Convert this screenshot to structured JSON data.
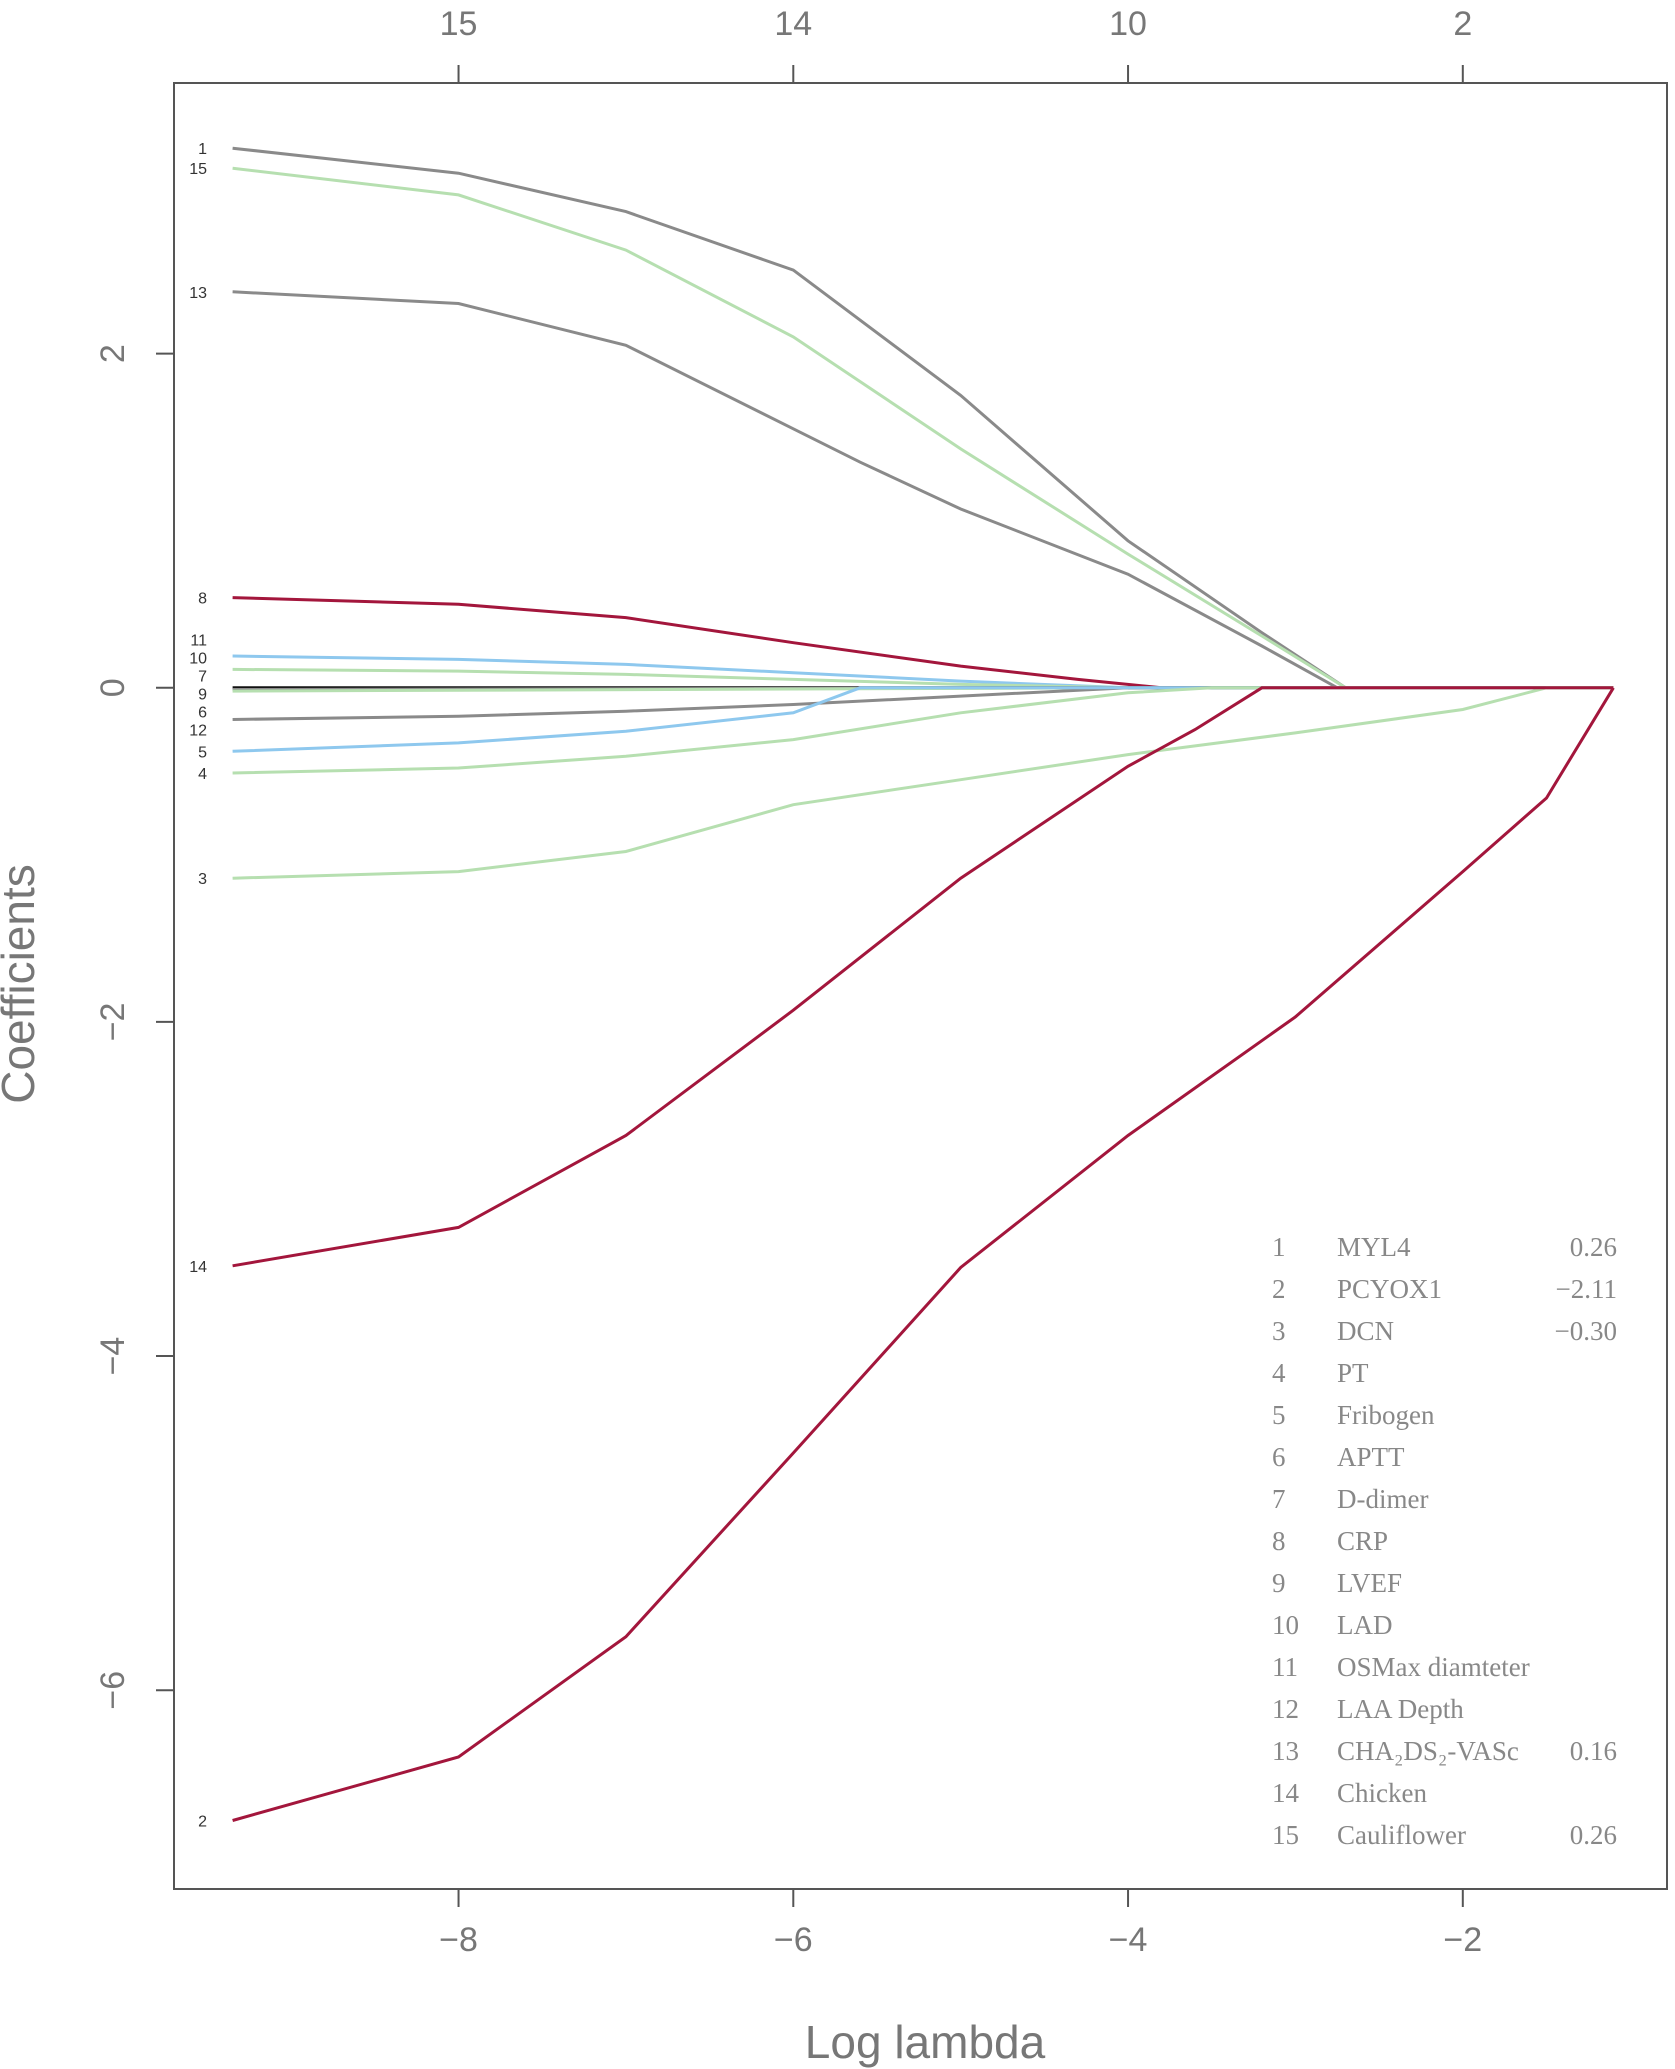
{
  "chart_data": {
    "type": "line",
    "xlabel": "Log lambda",
    "ylabel": "Coefficients",
    "xlim": [
      -9.7,
      -0.78
    ],
    "ylim": [
      -7.19,
      3.62
    ],
    "x_ticks": [
      -8,
      -6,
      -4,
      -2
    ],
    "y_ticks": [
      -6,
      -4,
      -2,
      0,
      2
    ],
    "top_axis_ticks": [
      -8,
      -6,
      -4,
      -2
    ],
    "top_axis_labels": [
      "15",
      "14",
      "10",
      "2"
    ],
    "grid": false,
    "colors": {
      "gray": "#8a8a8a",
      "green": "#b6dfb0",
      "red": "#a3163c",
      "blue": "#8ec8ee",
      "black": "#111111"
    },
    "series": [
      {
        "label": "1",
        "color": "#8a8a8a",
        "points": [
          [
            -9.35,
            3.23
          ],
          [
            -8,
            3.08
          ],
          [
            -7,
            2.85
          ],
          [
            -6,
            2.5
          ],
          [
            -5,
            1.75
          ],
          [
            -4,
            0.88
          ],
          [
            -3.2,
            0.33
          ],
          [
            -2.7,
            0
          ],
          [
            -1.1,
            0
          ]
        ]
      },
      {
        "label": "15",
        "color": "#b6dfb0",
        "points": [
          [
            -9.35,
            3.11
          ],
          [
            -8,
            2.95
          ],
          [
            -7,
            2.62
          ],
          [
            -6,
            2.1
          ],
          [
            -5,
            1.43
          ],
          [
            -4,
            0.8
          ],
          [
            -3.2,
            0.31
          ],
          [
            -2.7,
            0
          ],
          [
            -1.1,
            0
          ]
        ]
      },
      {
        "label": "13",
        "color": "#8a8a8a",
        "points": [
          [
            -9.35,
            2.37
          ],
          [
            -8,
            2.3
          ],
          [
            -7,
            2.05
          ],
          [
            -6,
            1.55
          ],
          [
            -5.6,
            1.35
          ],
          [
            -5,
            1.07
          ],
          [
            -4,
            0.68
          ],
          [
            -3.2,
            0.25
          ],
          [
            -2.75,
            0
          ],
          [
            -1.1,
            0
          ]
        ]
      },
      {
        "label": "8",
        "color": "#a3163c",
        "points": [
          [
            -9.35,
            0.54
          ],
          [
            -8,
            0.5
          ],
          [
            -7,
            0.42
          ],
          [
            -6,
            0.27
          ],
          [
            -5,
            0.13
          ],
          [
            -4.3,
            0.05
          ],
          [
            -3.8,
            0
          ],
          [
            -1.1,
            0
          ]
        ]
      },
      {
        "label": "11",
        "color": "#8ec8ee",
        "points": [
          [
            -9.35,
            0.19
          ],
          [
            -8,
            0.17
          ],
          [
            -7,
            0.14
          ],
          [
            -6,
            0.09
          ],
          [
            -5,
            0.04
          ],
          [
            -4,
            0
          ],
          [
            -1.1,
            0
          ]
        ]
      },
      {
        "label": "10",
        "color": "#b6dfb0",
        "points": [
          [
            -9.35,
            0.11
          ],
          [
            -8,
            0.1
          ],
          [
            -7,
            0.08
          ],
          [
            -6,
            0.05
          ],
          [
            -5,
            0.02
          ],
          [
            -4,
            0
          ],
          [
            -1.1,
            0
          ]
        ]
      },
      {
        "label": "7",
        "color": "#111111",
        "points": [
          [
            -9.35,
            0
          ],
          [
            -1.1,
            0
          ]
        ]
      },
      {
        "label": "9",
        "color": "#8a8a8a",
        "points": [
          [
            -9.35,
            -0.01
          ],
          [
            -4,
            0
          ]
        ]
      },
      {
        "label": "6",
        "color": "#b6dfb0",
        "points": [
          [
            -9.35,
            -0.02
          ],
          [
            -4,
            0
          ]
        ]
      },
      {
        "label": "12",
        "color": "#8a8a8a",
        "points": [
          [
            -9.35,
            -0.19
          ],
          [
            -8,
            -0.17
          ],
          [
            -7,
            -0.14
          ],
          [
            -6,
            -0.1
          ],
          [
            -5,
            -0.05
          ],
          [
            -4,
            0
          ],
          [
            -1.1,
            0
          ]
        ]
      },
      {
        "label": "5",
        "color": "#8ec8ee",
        "points": [
          [
            -9.35,
            -0.38
          ],
          [
            -8,
            -0.33
          ],
          [
            -7,
            -0.26
          ],
          [
            -6,
            -0.15
          ],
          [
            -5.6,
            0
          ],
          [
            -1.1,
            0
          ]
        ]
      },
      {
        "label": "4",
        "color": "#b6dfb0",
        "points": [
          [
            -9.35,
            -0.51
          ],
          [
            -8,
            -0.48
          ],
          [
            -7,
            -0.41
          ],
          [
            -6,
            -0.31
          ],
          [
            -5,
            -0.15
          ],
          [
            -4,
            -0.03
          ],
          [
            -3.5,
            0
          ],
          [
            -1.1,
            0
          ]
        ]
      },
      {
        "label": "3",
        "color": "#b6dfb0",
        "points": [
          [
            -9.35,
            -1.14
          ],
          [
            -8,
            -1.1
          ],
          [
            -7,
            -0.98
          ],
          [
            -6,
            -0.7
          ],
          [
            -5,
            -0.55
          ],
          [
            -4,
            -0.4
          ],
          [
            -3,
            -0.27
          ],
          [
            -2,
            -0.13
          ],
          [
            -1.5,
            0
          ],
          [
            -1.1,
            0
          ]
        ]
      },
      {
        "label": "14",
        "color": "#a3163c",
        "points": [
          [
            -9.35,
            -3.46
          ],
          [
            -8,
            -3.23
          ],
          [
            -7,
            -2.68
          ],
          [
            -6,
            -1.93
          ],
          [
            -5,
            -1.14
          ],
          [
            -4,
            -0.47
          ],
          [
            -3.6,
            -0.25
          ],
          [
            -3.2,
            0
          ],
          [
            -1.1,
            0
          ]
        ]
      },
      {
        "label": "2",
        "color": "#a3163c",
        "points": [
          [
            -9.35,
            -6.78
          ],
          [
            -8,
            -6.4
          ],
          [
            -7,
            -5.68
          ],
          [
            -6,
            -4.58
          ],
          [
            -5,
            -3.47
          ],
          [
            -4,
            -2.68
          ],
          [
            -3,
            -1.97
          ],
          [
            -2,
            -1.1
          ],
          [
            -1.5,
            -0.66
          ],
          [
            -1.1,
            0
          ]
        ]
      }
    ],
    "left_labels": [
      {
        "text": "1",
        "y": 3.23
      },
      {
        "text": "15",
        "y": 3.11
      },
      {
        "text": "13",
        "y": 2.37
      },
      {
        "text": "8",
        "y": 0.54
      },
      {
        "text": "11",
        "y": 0.2
      },
      {
        "text": "10",
        "y": 0.11
      },
      {
        "text": "7",
        "y": 0.02
      },
      {
        "text": "9",
        "y": 0
      },
      {
        "text": "6",
        "y": -0.02
      },
      {
        "text": "12",
        "y": -0.19
      },
      {
        "text": "5",
        "y": -0.38
      },
      {
        "text": "4",
        "y": -0.51
      },
      {
        "text": "3",
        "y": -1.14
      },
      {
        "text": "14",
        "y": -3.46
      },
      {
        "text": "2",
        "y": -6.78
      }
    ],
    "legend": [
      {
        "num": "1",
        "name": "MYL4",
        "value": "0.26"
      },
      {
        "num": "2",
        "name": "PCYOX1",
        "value": "−2.11"
      },
      {
        "num": "3",
        "name": "DCN",
        "value": "−0.30"
      },
      {
        "num": "4",
        "name": "PT",
        "value": ""
      },
      {
        "num": "5",
        "name": "Fribogen",
        "value": ""
      },
      {
        "num": "6",
        "name": "APTT",
        "value": ""
      },
      {
        "num": "7",
        "name": "D-dimer",
        "value": ""
      },
      {
        "num": "8",
        "name": "CRP",
        "value": ""
      },
      {
        "num": "9",
        "name": "LVEF",
        "value": ""
      },
      {
        "num": "10",
        "name": "LAD",
        "value": ""
      },
      {
        "num": "11",
        "name": "OSMax diamteter",
        "value": ""
      },
      {
        "num": "12",
        "name": "LAA Depth",
        "value": ""
      },
      {
        "num": "13",
        "name": "CHA₂DS₂-VASc",
        "value": "0.16"
      },
      {
        "num": "14",
        "name": "Chicken",
        "value": ""
      },
      {
        "num": "15",
        "name": "Cauliflower",
        "value": "0.26"
      }
    ]
  }
}
